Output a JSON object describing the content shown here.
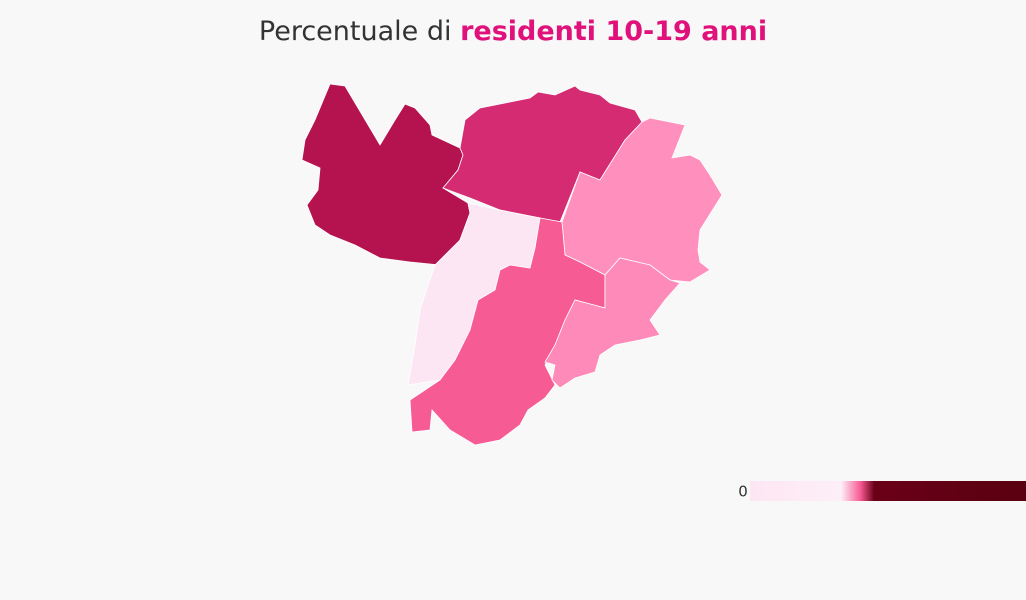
{
  "map": {
    "title": {
      "lead": "Percentuale di ",
      "highlight": "residenti 10-19 anni",
      "highlight_color": "#e0117a"
    },
    "regions": [
      {
        "color": "#b5134f"
      },
      {
        "color": "#d42b72"
      },
      {
        "color": "#ff8fbd"
      },
      {
        "color": "#fde6f3"
      },
      {
        "color": "#f75b94"
      },
      {
        "color": "#fd8ab8"
      }
    ],
    "legend": {
      "min": 0,
      "colors": [
        "#fde6f3",
        "#fdeff7",
        "#f75b94",
        "#6a0018",
        "#5a0010"
      ]
    }
  }
}
